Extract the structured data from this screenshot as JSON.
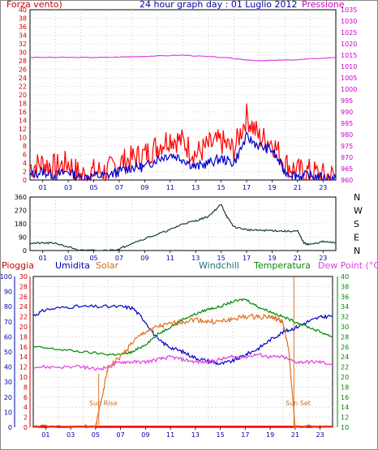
{
  "chart_data": [
    {
      "type": "line",
      "title": "24 hour graph day : 01 Luglio 2012",
      "left_label": "Forza vento)",
      "right_label": "Pressione",
      "x_ticks": [
        "01",
        "03",
        "05",
        "07",
        "09",
        "11",
        "13",
        "15",
        "17",
        "19",
        "21",
        "23"
      ],
      "left_axis": {
        "ticks": [
          "0",
          "2",
          "4",
          "6",
          "8",
          "10",
          "12",
          "14",
          "16",
          "18",
          "20",
          "22",
          "24",
          "26",
          "28",
          "30",
          "32",
          "34",
          "36",
          "38",
          "40"
        ],
        "range": [
          0,
          40
        ],
        "color": "#cc0000"
      },
      "right_axis": {
        "ticks": [
          "960",
          "965",
          "970",
          "975",
          "980",
          "985",
          "990",
          "995",
          "1000",
          "1005",
          "1010",
          "1015",
          "1020",
          "1025",
          "1030",
          "1035"
        ],
        "range": [
          960,
          1035
        ],
        "color": "#cc00cc"
      },
      "series": [
        {
          "color": "#ff0000",
          "x": [
            0,
            1,
            2,
            3,
            4,
            5,
            6,
            7,
            8,
            9,
            10,
            11,
            12,
            13,
            14,
            15,
            16,
            17,
            18,
            19,
            20,
            21,
            22,
            23,
            24
          ],
          "y": [
            3,
            4,
            3,
            4,
            1,
            2,
            2,
            4,
            5,
            6,
            8,
            10,
            9,
            6,
            8,
            9,
            7,
            15,
            10,
            9,
            4,
            2,
            2,
            1,
            1
          ]
        },
        {
          "color": "#0000cc",
          "x": [
            0,
            1,
            2,
            3,
            4,
            5,
            6,
            7,
            8,
            9,
            10,
            11,
            12,
            13,
            14,
            15,
            16,
            17,
            18,
            19,
            20,
            21,
            22,
            23,
            24
          ],
          "y": [
            1,
            2,
            1,
            2,
            0.5,
            1,
            1,
            2,
            3,
            3,
            5,
            6,
            5,
            3,
            4,
            5,
            4,
            10,
            8,
            7,
            2,
            1,
            1,
            0.5,
            0.5
          ]
        },
        {
          "color": "#e040e0",
          "x": [
            0,
            3,
            6,
            9,
            12,
            15,
            18,
            21,
            24
          ],
          "y": [
            1014,
            1014,
            1014,
            1014.5,
            1015,
            1014,
            1012.5,
            1013,
            1014
          ]
        }
      ]
    },
    {
      "type": "line",
      "title": "",
      "left_axis": {
        "ticks": [
          "0",
          "90",
          "180",
          "270",
          "360"
        ],
        "range": [
          0,
          360
        ]
      },
      "right_labels": [
        "N",
        "W",
        "S",
        "E",
        "N"
      ],
      "x_ticks": [
        "01",
        "03",
        "05",
        "07",
        "09",
        "11",
        "13",
        "15",
        "17",
        "19",
        "21",
        "23"
      ],
      "series": [
        {
          "color": "#1a3a3a",
          "x": [
            0,
            1,
            2,
            4,
            6,
            7,
            8,
            10,
            11,
            12,
            13,
            14,
            15,
            15.5,
            16,
            17,
            18,
            19,
            20,
            21,
            21.5,
            22,
            23,
            24
          ],
          "y": [
            50,
            50,
            50,
            0,
            0,
            10,
            50,
            110,
            140,
            180,
            200,
            230,
            310,
            220,
            160,
            140,
            135,
            135,
            130,
            130,
            50,
            40,
            60,
            50
          ]
        }
      ]
    },
    {
      "type": "line",
      "title": "",
      "top_labels": {
        "pioggia": "Pioggia",
        "umidita": "Umidita",
        "solar": "Solar",
        "windchill": "Windchill",
        "temperatura": "Temperatura",
        "dewpoint": "Dew Point (°C)"
      },
      "annotations": {
        "sunrise": "Sun Rise",
        "sunset": "Sun Set"
      },
      "umidita_axis": {
        "ticks": [
          "0",
          "10",
          "20",
          "30",
          "40",
          "50",
          "60",
          "70",
          "80",
          "90",
          "100"
        ],
        "range": [
          0,
          100
        ]
      },
      "pioggia_axis": {
        "ticks": [
          "0",
          "2",
          "4",
          "6",
          "8",
          "10",
          "12",
          "14",
          "16",
          "18",
          "20",
          "22",
          "24",
          "26",
          "28",
          "30"
        ],
        "range": [
          0,
          30
        ]
      },
      "temp_axis": {
        "ticks": [
          "10",
          "12",
          "14",
          "16",
          "18",
          "20",
          "22",
          "24",
          "26",
          "28",
          "30",
          "32",
          "34",
          "36",
          "38",
          "40"
        ],
        "range": [
          10,
          40
        ]
      },
      "x_ticks": [
        "01",
        "03",
        "05",
        "07",
        "09",
        "11",
        "13",
        "15",
        "17",
        "19",
        "21",
        "23"
      ],
      "series": [
        {
          "color": "#0000cc",
          "axis": "umidita",
          "x": [
            0,
            1,
            3,
            5,
            7,
            8,
            9,
            10,
            11,
            12,
            13,
            14,
            15,
            16,
            17,
            18,
            19,
            20,
            21,
            22,
            23,
            24
          ],
          "y": [
            74,
            78,
            80,
            80,
            80,
            79,
            70,
            58,
            53,
            50,
            46,
            44,
            42,
            44,
            48,
            52,
            58,
            63,
            66,
            70,
            73,
            74
          ]
        },
        {
          "color": "#008800",
          "axis": "temp",
          "x": [
            0,
            2,
            4,
            6,
            7,
            8,
            9,
            10,
            11,
            12,
            13,
            14,
            15,
            16,
            17,
            18,
            19,
            20,
            21,
            22,
            23,
            24
          ],
          "y": [
            26,
            25.5,
            25,
            24.5,
            24.5,
            25,
            26.5,
            28.5,
            30,
            31.5,
            32.5,
            33.5,
            34,
            35,
            35.5,
            34,
            33,
            32,
            31,
            30,
            29,
            28
          ]
        },
        {
          "color": "#e040e0",
          "axis": "temp",
          "x": [
            0,
            2,
            4,
            5,
            6,
            7,
            8,
            9,
            10,
            11,
            12,
            13,
            14,
            15,
            16,
            17,
            18,
            19,
            20,
            21,
            22,
            23,
            24
          ],
          "y": [
            22,
            22,
            22,
            21.5,
            22,
            23,
            23,
            23,
            23.5,
            24,
            23.5,
            23,
            23,
            23.5,
            24,
            24,
            24.5,
            24,
            24,
            23,
            23,
            23,
            22.5
          ]
        },
        {
          "color": "#e07020",
          "axis": "temp",
          "x": [
            0,
            4,
            5,
            5.5,
            6,
            7,
            8,
            9,
            10,
            11,
            12,
            13,
            14,
            15,
            16,
            17,
            18,
            19,
            19.5,
            20,
            20.5,
            21,
            24
          ],
          "y": [
            10,
            10,
            10,
            16,
            22,
            24,
            27,
            29,
            30,
            30.5,
            31,
            31.5,
            31,
            31,
            31.5,
            32,
            32,
            32,
            31.5,
            31,
            25,
            10,
            10
          ]
        }
      ]
    }
  ]
}
